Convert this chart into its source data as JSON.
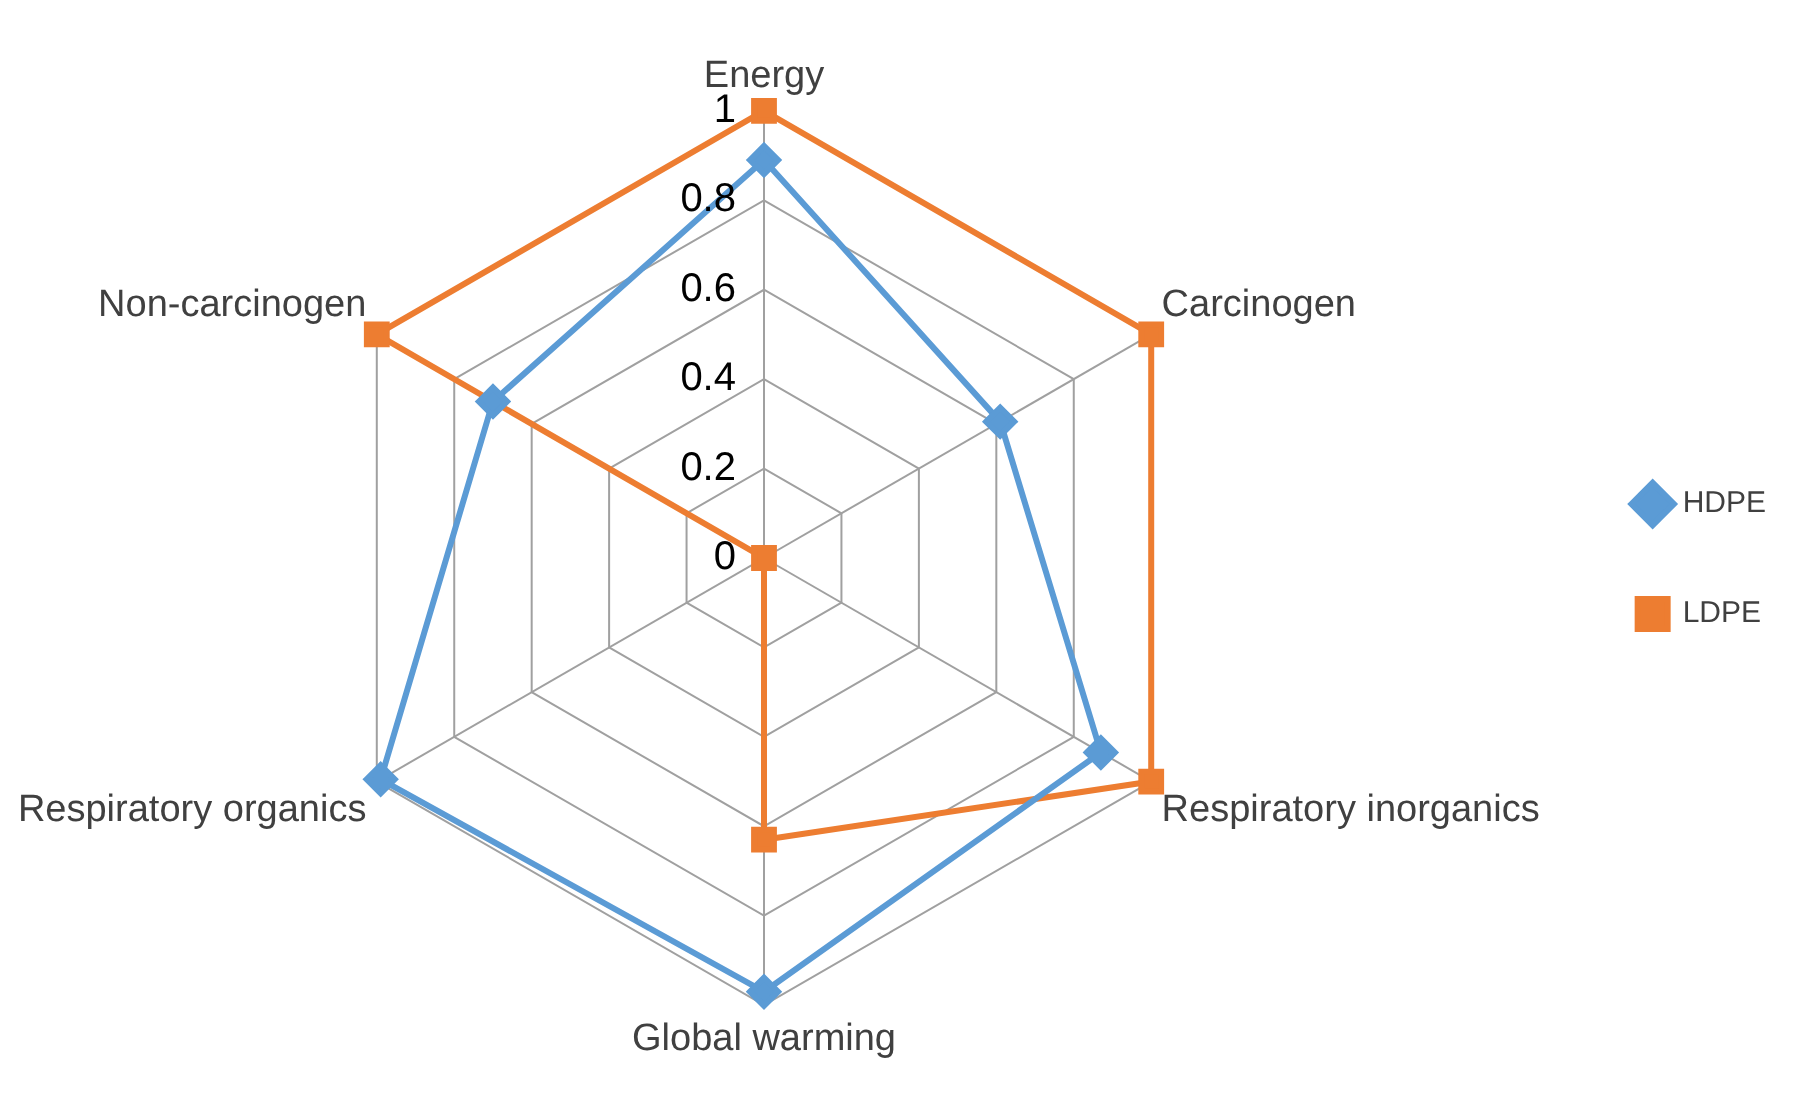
{
  "chart_data": {
    "type": "radar",
    "categories": [
      "Energy",
      "Carcinogen",
      "Respiratory inorganics",
      "Global warming",
      "Respiratory organics",
      "Non-carcinogen"
    ],
    "series": [
      {
        "name": "HDPE",
        "color": "#5b9bd5",
        "marker": "diamond",
        "values": [
          0.89,
          0.61,
          0.87,
          0.97,
          0.99,
          0.7
        ]
      },
      {
        "name": "LDPE",
        "color": "#ed7d31",
        "marker": "square",
        "values": [
          1,
          1,
          1,
          0.63,
          0,
          1
        ]
      }
    ],
    "ylim": [
      0,
      1
    ],
    "yticks": [
      0,
      0.2,
      0.4,
      0.6,
      0.8,
      1
    ],
    "grid": true,
    "legend": "right",
    "line_style": "solid"
  }
}
